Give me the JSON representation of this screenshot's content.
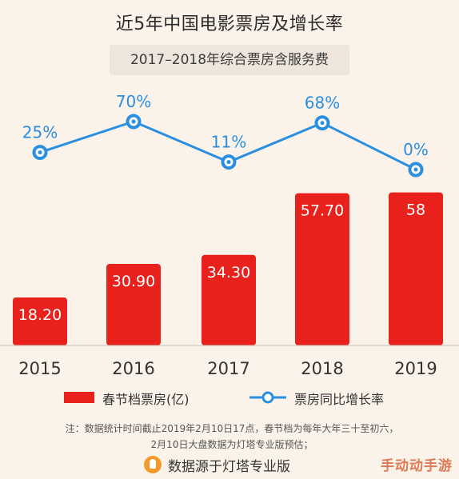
{
  "title": "近5年中国电影票房及增长率",
  "subtitle": "2017–2018年综合票房含服务费",
  "legend": {
    "bar_label": "春节档票房(亿)",
    "line_label": "票房同比增长率"
  },
  "footnote": {
    "line1": "注：数据统计时间截止2019年2月10日17点，春节档为每年大年三十至初六，",
    "line2": "2月10日大盘数据为灯塔专业版预估；"
  },
  "source": "数据源于灯塔专业版",
  "watermark": "手动动手游",
  "colors": {
    "bar": "#e8211c",
    "line": "#2a8fe0",
    "line_label": "#2a8fe0",
    "background": "#fbf3ea"
  },
  "chart_data": {
    "type": "bar",
    "categories": [
      "2015",
      "2016",
      "2017",
      "2018",
      "2019"
    ],
    "series": [
      {
        "name": "春节档票房(亿)",
        "type": "bar",
        "values": [
          18.2,
          30.9,
          34.3,
          57.7,
          58
        ],
        "labels": [
          "18.20",
          "30.90",
          "34.30",
          "57.70",
          "58"
        ]
      },
      {
        "name": "票房同比增长率",
        "type": "line",
        "values": [
          25,
          70,
          11,
          68,
          0
        ],
        "labels": [
          "25%",
          "70%",
          "11%",
          "68%",
          "0%"
        ]
      }
    ],
    "title": "近5年中国电影票房及增长率",
    "ylim": [
      0,
      60
    ],
    "ylim_line": [
      0,
      70
    ],
    "grid": false,
    "legend_position": "bottom"
  }
}
